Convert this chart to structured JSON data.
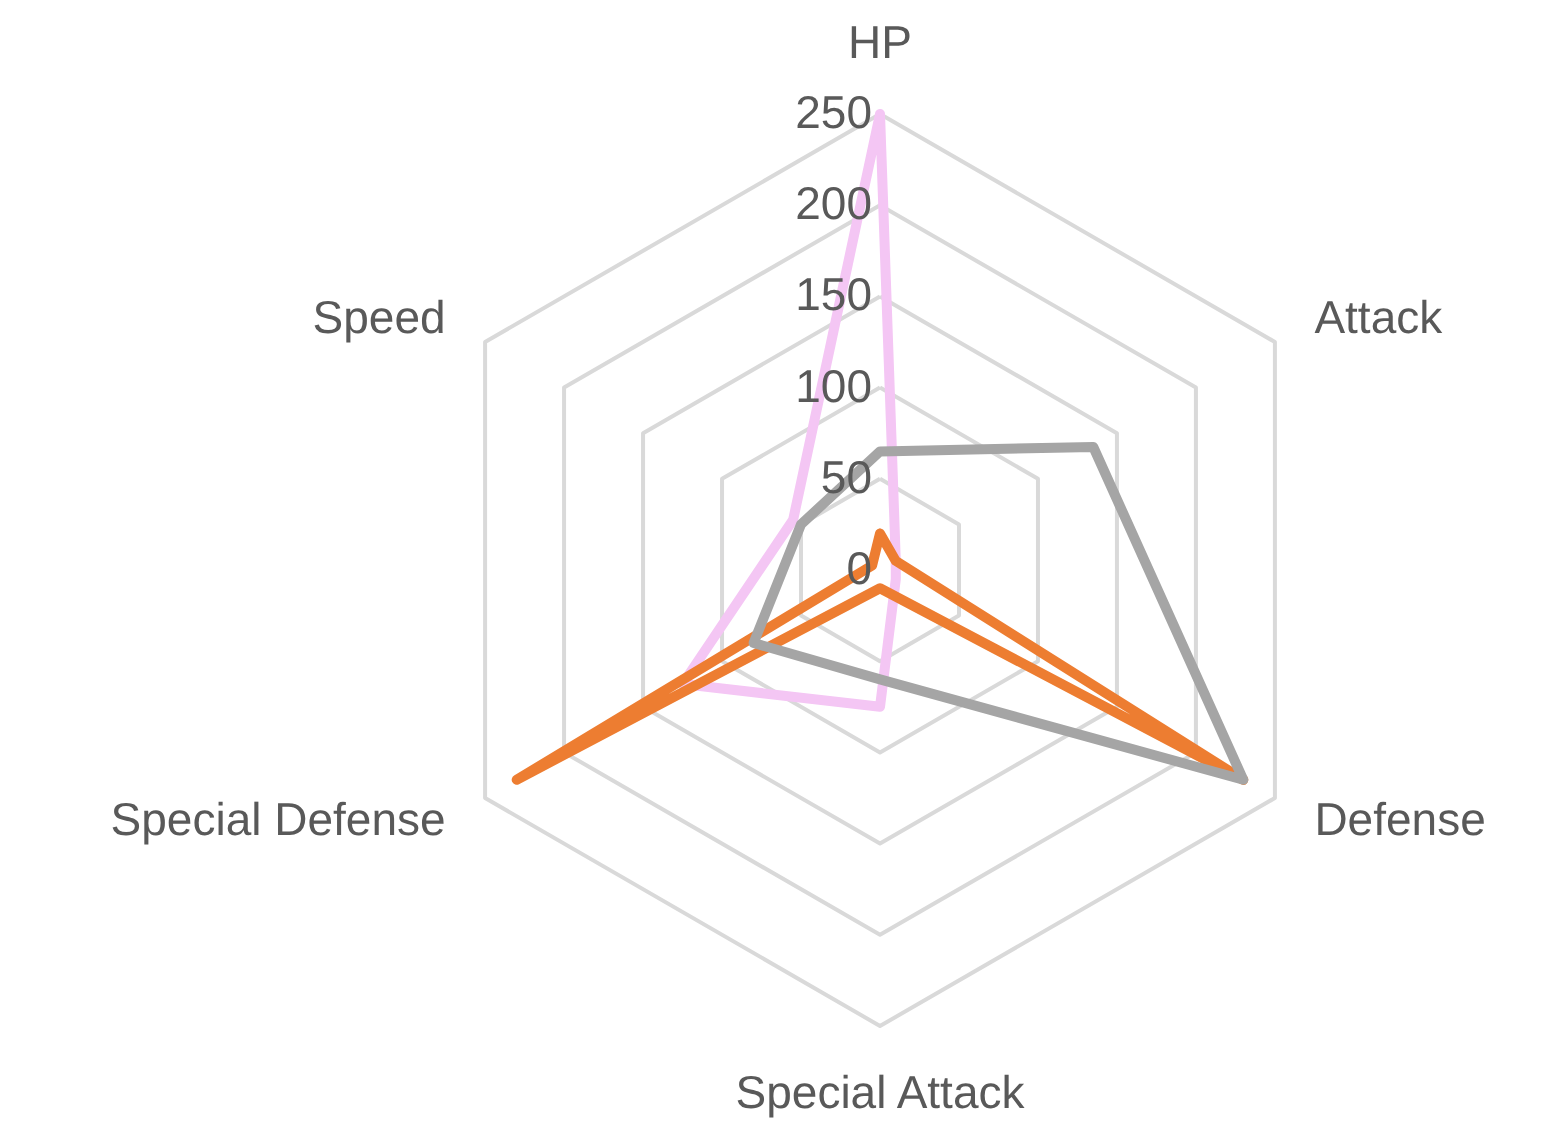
{
  "chart_data": {
    "type": "radar",
    "categories": [
      "HP",
      "Attack",
      "Defense",
      "Special Attack",
      "Special Defense",
      "Speed"
    ],
    "series": [
      {
        "color": "#f4c6f4",
        "values": [
          250,
          10,
          10,
          75,
          125,
          55
        ]
      },
      {
        "color": "#ed7d31",
        "values": [
          20,
          10,
          230,
          10,
          230,
          5
        ]
      },
      {
        "color": "#a5a5a5",
        "values": [
          65,
          135,
          230,
          60,
          80,
          50
        ]
      }
    ],
    "ylim": [
      0,
      250
    ],
    "yticks": [
      0,
      50,
      100,
      150,
      200,
      250
    ],
    "grid": true
  }
}
